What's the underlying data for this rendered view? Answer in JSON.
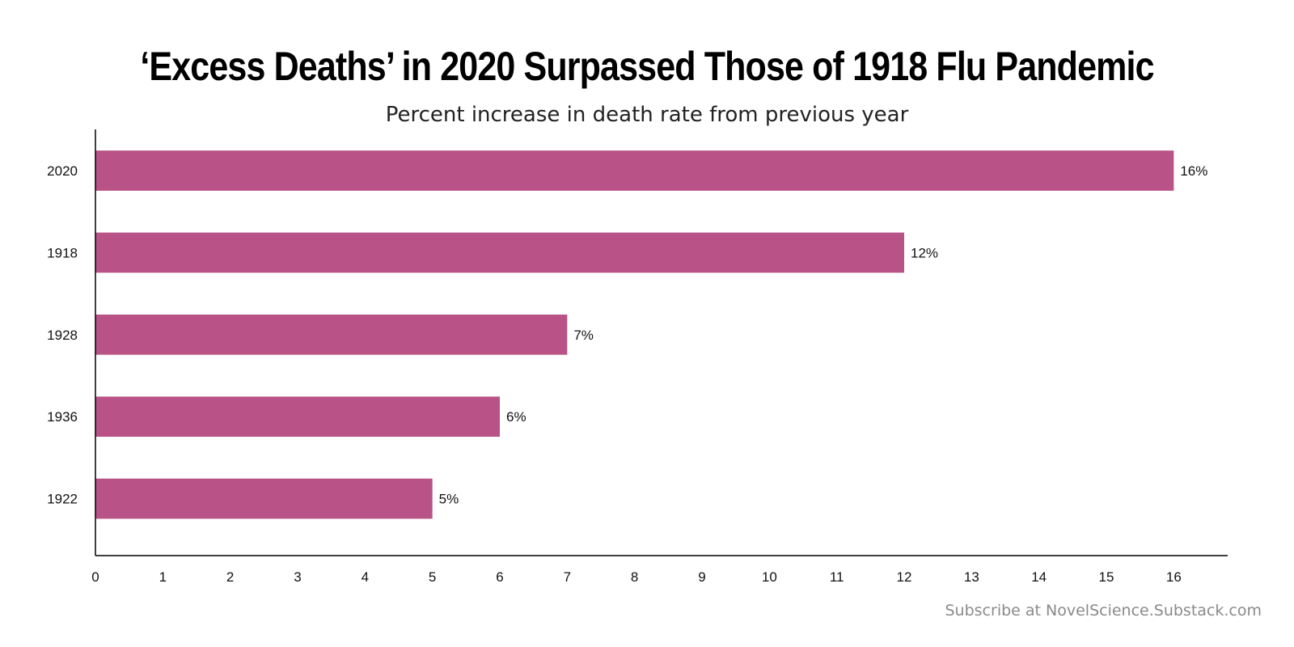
{
  "title": "‘Excess Deaths’ in 2020 Surpassed Those of 1918 Flu Pandemic",
  "subtitle": "Percent increase in death rate from previous year",
  "footer": "Subscribe at NovelScience.Substack.com",
  "chart_data": {
    "type": "bar",
    "orientation": "horizontal",
    "categories": [
      "2020",
      "1918",
      "1928",
      "1936",
      "1922"
    ],
    "values": [
      16,
      12,
      7,
      6,
      5
    ],
    "value_labels": [
      "16%",
      "12%",
      "7%",
      "6%",
      "5%"
    ],
    "xlim": [
      0,
      16.8
    ],
    "xticks": [
      0,
      1,
      2,
      3,
      4,
      5,
      6,
      7,
      8,
      9,
      10,
      11,
      12,
      13,
      14,
      15,
      16
    ],
    "xlabel": "",
    "ylabel": "",
    "grid": false,
    "bar_color": "#b85287"
  }
}
